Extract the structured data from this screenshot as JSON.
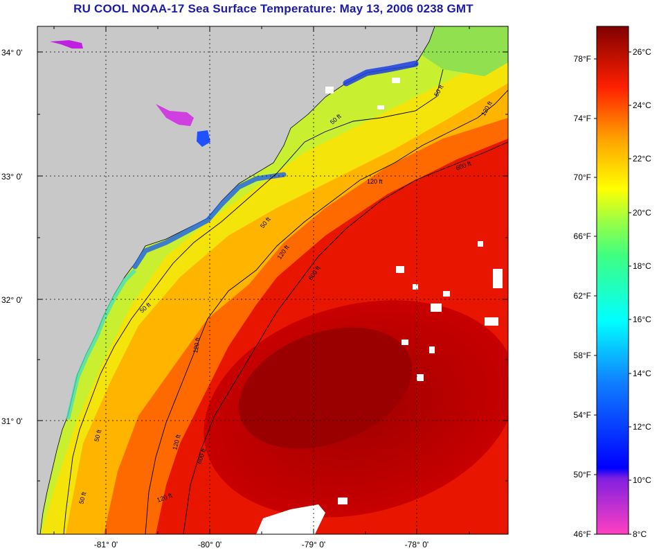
{
  "title": "RU COOL  NOAA-17  Sea Surface Temperature:  May 13, 2006 0238 GMT",
  "map": {
    "latitude_labels": [
      "34° 0'",
      "33° 0'",
      "32° 0'",
      "31° 0'"
    ],
    "longitude_labels": [
      "-81° 0'",
      "-80° 0'",
      "-79° 0'",
      "-78° 0'"
    ],
    "contour_labels": [
      "50 ft",
      "120 ft",
      "600 ft",
      "120 ft",
      "600 ft",
      "120 ft",
      "50 ft",
      "120 ft",
      "50 ft",
      "50 ft",
      "600 ft",
      "120 ft",
      "50 ft",
      "50 ft",
      "120 ft"
    ],
    "colors": {
      "land": "#c8c8c8",
      "warm_core": "#b00000",
      "gulf_stream": "#e81000",
      "shelf_break": "#ff7a00",
      "mid_shelf": "#ffd200",
      "inner_shelf": "#e6f020",
      "nearshore": "#90e040",
      "coastal_cold": "#1040e0",
      "cloud": "#ffffff"
    }
  },
  "colorbar": {
    "fahrenheit_labels": [
      "78°F",
      "74°F",
      "70°F",
      "66°F",
      "62°F",
      "58°F",
      "54°F",
      "50°F",
      "46°F"
    ],
    "celsius_labels": [
      "26°C",
      "24°C",
      "22°C",
      "20°C",
      "18°C",
      "16°C",
      "14°C",
      "12°C",
      "10°C",
      "8°C"
    ]
  }
}
